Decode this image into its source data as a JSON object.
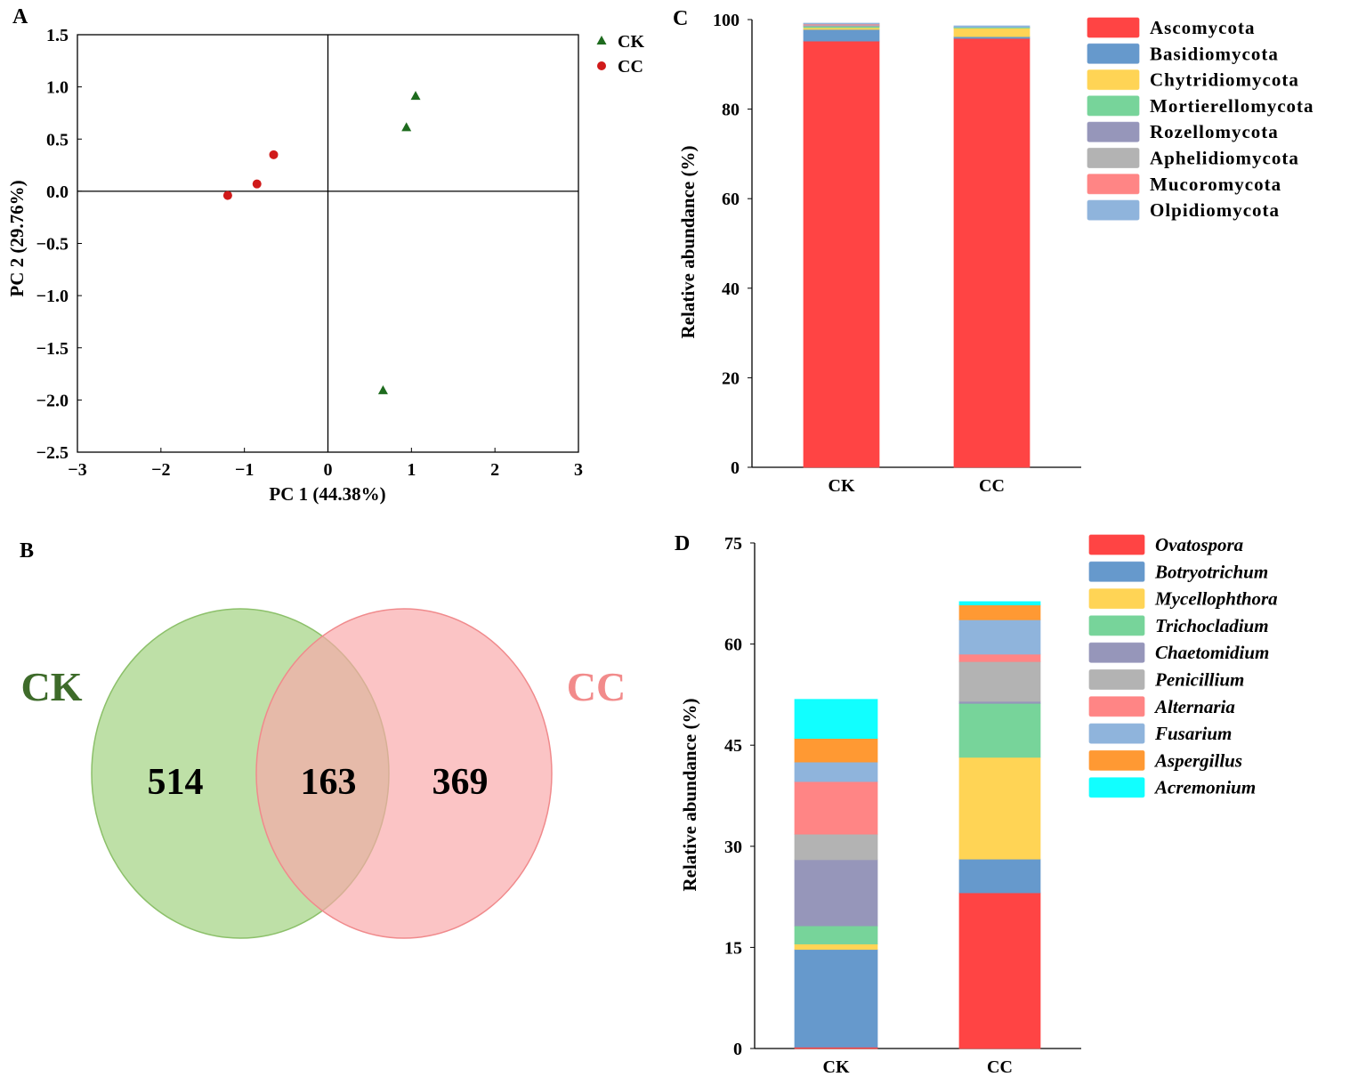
{
  "chart_data": [
    {
      "panel": "A",
      "type": "scatter",
      "xlabel": "PC 1 (44.38%)",
      "ylabel": "PC 2 (29.76%)",
      "xlim": [
        -3,
        3
      ],
      "ylim": [
        -2.5,
        1.5
      ],
      "xticks": [
        "−3",
        "−2",
        "−1",
        "0",
        "1",
        "2",
        "3"
      ],
      "yticks": [
        "1.5",
        "1.0",
        "0.5",
        "0.0",
        "−0.5",
        "−1.0",
        "−1.5",
        "−2.0",
        "−2.5"
      ],
      "legend_position": "top-right-outside",
      "series": [
        {
          "name": "CK",
          "marker": "triangle",
          "color": "#1e6b1e",
          "points": [
            [
              1.05,
              0.91
            ],
            [
              0.94,
              0.61
            ],
            [
              0.66,
              -1.91
            ]
          ]
        },
        {
          "name": "CC",
          "marker": "circle",
          "color": "#d01a1a",
          "points": [
            [
              -0.65,
              0.35
            ],
            [
              -0.85,
              0.07
            ],
            [
              -1.2,
              -0.04
            ]
          ]
        }
      ]
    },
    {
      "panel": "B",
      "type": "venn",
      "sets": [
        {
          "name": "CK",
          "unique": "514",
          "color": "#a8d58a",
          "label_color": "#3e6b2a"
        },
        {
          "name": "CC",
          "unique": "369",
          "color": "#f9a8aa",
          "label_color": "#f28b8b"
        }
      ],
      "shared": "163"
    },
    {
      "panel": "C",
      "type": "bar",
      "stacked": true,
      "ylabel": "Relative abundance (%)",
      "ylim": [
        0,
        100
      ],
      "yticks": [
        "100",
        "80",
        "60",
        "40",
        "20",
        "0"
      ],
      "categories": [
        "CK",
        "CC"
      ],
      "legend_position": "right",
      "series": [
        {
          "name": "Ascomycota",
          "color": "#ff4444",
          "values": [
            95.2,
            95.8
          ]
        },
        {
          "name": "Basidiomycota",
          "color": "#6699cc",
          "values": [
            2.6,
            0.4
          ]
        },
        {
          "name": "Chytridiomycota",
          "color": "#ffd455",
          "values": [
            0.4,
            2.0
          ]
        },
        {
          "name": "Mortierellomycota",
          "color": "#77d49a",
          "values": [
            0.4,
            0.1
          ]
        },
        {
          "name": "Rozellomycota",
          "color": "#9696ba",
          "values": [
            0.1,
            0.0
          ]
        },
        {
          "name": "Aphelidiomycota",
          "color": "#b3b3b3",
          "values": [
            0.1,
            0.0
          ]
        },
        {
          "name": "Mucoromycota",
          "color": "#ff8585",
          "values": [
            0.3,
            0.0
          ]
        },
        {
          "name": "Olpidiomycota",
          "color": "#8fb4dc",
          "values": [
            0.1,
            0.3
          ]
        }
      ]
    },
    {
      "panel": "D",
      "type": "bar",
      "stacked": true,
      "ylabel": "Relative abundance (%)",
      "ylim": [
        0,
        75
      ],
      "yticks": [
        "75",
        "60",
        "45",
        "30",
        "15",
        "0"
      ],
      "categories": [
        "CK",
        "CC"
      ],
      "legend_position": "right",
      "series": [
        {
          "name": "Ovatospora",
          "color": "#ff4444",
          "values": [
            0.2,
            23.1
          ]
        },
        {
          "name": "Botryotrichum",
          "color": "#6699cc",
          "values": [
            14.5,
            5.0
          ]
        },
        {
          "name": "Mycellophthora",
          "color": "#ffd455",
          "values": [
            0.8,
            15.1
          ]
        },
        {
          "name": "Trichocladium",
          "color": "#77d49a",
          "values": [
            2.7,
            8.0
          ]
        },
        {
          "name": "Chaetomidium",
          "color": "#9696ba",
          "values": [
            9.8,
            0.3
          ]
        },
        {
          "name": "Penicillium",
          "color": "#b3b3b3",
          "values": [
            3.8,
            5.9
          ]
        },
        {
          "name": "Alternaria",
          "color": "#ff8585",
          "values": [
            7.8,
            1.1
          ]
        },
        {
          "name": "Fusarium",
          "color": "#8fb4dc",
          "values": [
            2.9,
            5.1
          ]
        },
        {
          "name": "Aspergillus",
          "color": "#ff9933",
          "values": [
            3.5,
            2.2
          ]
        },
        {
          "name": "Acremonium",
          "color": "#11ffff",
          "values": [
            5.8,
            0.5
          ]
        }
      ]
    }
  ]
}
